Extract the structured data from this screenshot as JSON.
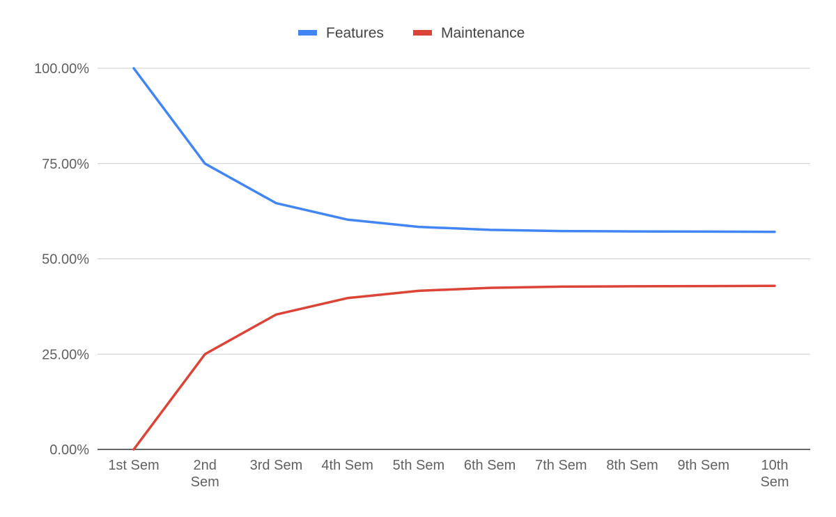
{
  "chart_data": {
    "type": "line",
    "title": "",
    "xlabel": "",
    "ylabel": "",
    "categories": [
      "1st Sem",
      "2nd Sem",
      "3rd Sem",
      "4th Sem",
      "5th Sem",
      "6th Sem",
      "7th Sem",
      "8th Sem",
      "9th Sem",
      "10th Sem"
    ],
    "series": [
      {
        "name": "Features",
        "color": "#4285f4",
        "values": [
          100.0,
          75.0,
          64.6,
          60.3,
          58.4,
          57.6,
          57.3,
          57.2,
          57.15,
          57.1
        ]
      },
      {
        "name": "Maintenance",
        "color": "#db4437",
        "values": [
          0.0,
          25.0,
          35.4,
          39.7,
          41.6,
          42.4,
          42.7,
          42.8,
          42.85,
          42.9
        ]
      }
    ],
    "ylim": [
      0,
      100
    ],
    "yticks": [
      "0.00%",
      "25.00%",
      "50.00%",
      "75.00%",
      "100.00%"
    ],
    "ytick_values": [
      0,
      25,
      50,
      75,
      100
    ],
    "grid": true,
    "legend_position": "top-center"
  }
}
